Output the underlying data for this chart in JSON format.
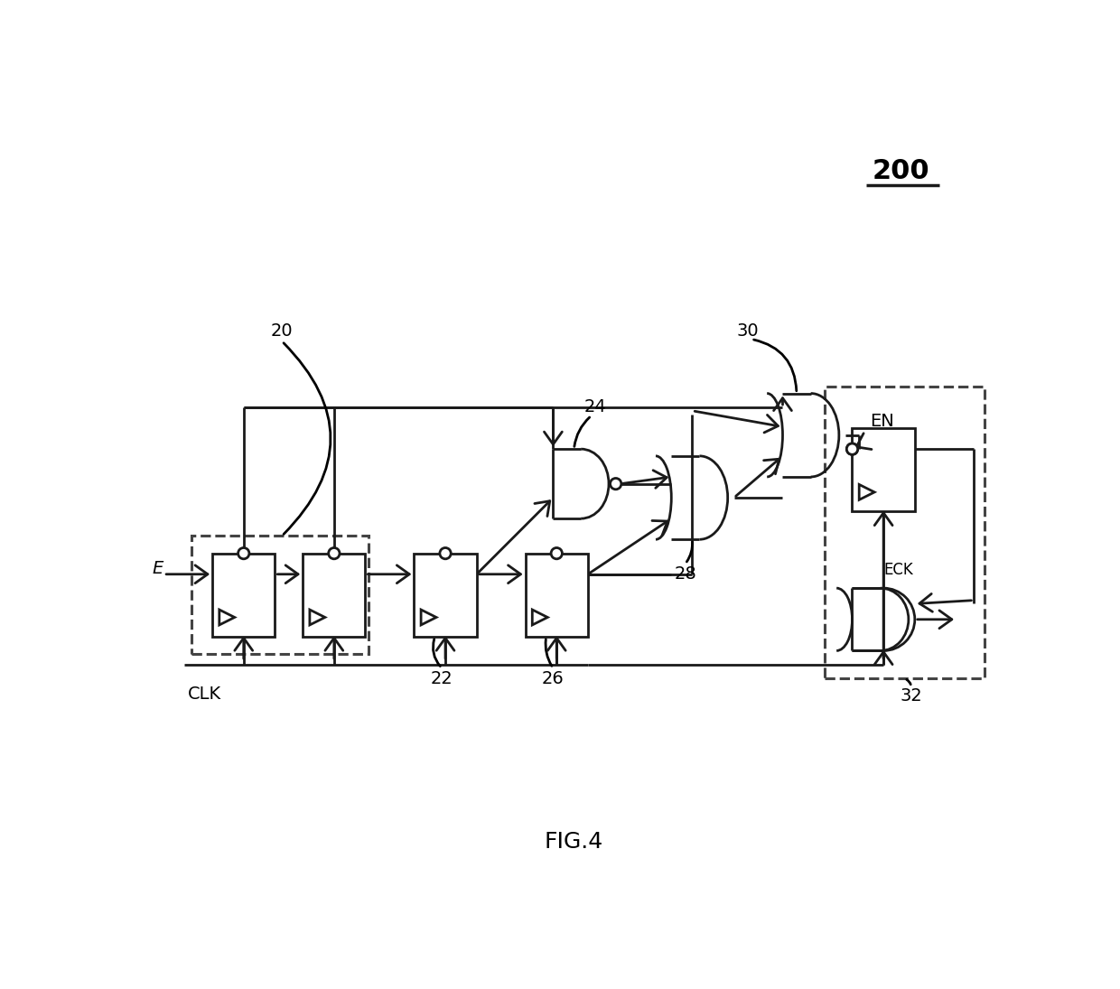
{
  "title": "FIG.4",
  "label_200": "200",
  "label_20": "20",
  "label_22": "22",
  "label_24": "24",
  "label_26": "26",
  "label_28": "28",
  "label_30": "30",
  "label_32": "32",
  "label_EN": "EN",
  "label_ECK": "ECK",
  "label_CLK": "CLK",
  "label_E": "E",
  "bg_color": "#ffffff",
  "line_color": "#1a1a1a"
}
